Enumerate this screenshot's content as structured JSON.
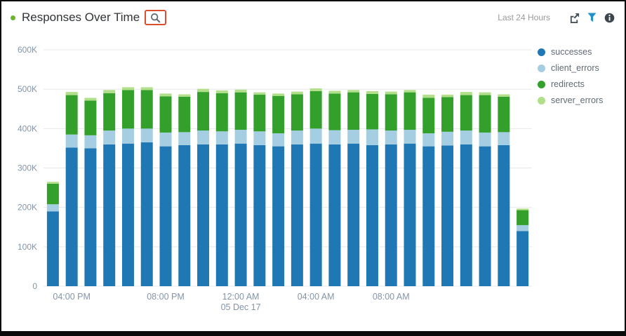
{
  "header": {
    "title": "Responses Over Time",
    "time_range": "Last 24 Hours",
    "status_dot_color": "#6ab42d",
    "annotation_color": "#d9512c"
  },
  "chart_data": {
    "type": "bar",
    "stacked": true,
    "title": "Responses Over Time",
    "grid": true,
    "legend_position": "right",
    "xlabel": "",
    "ylabel": "",
    "ylim": [
      0,
      600000
    ],
    "y_ticks": [
      {
        "value": 0,
        "label": "0"
      },
      {
        "value": 100000,
        "label": "100K"
      },
      {
        "value": 200000,
        "label": "200K"
      },
      {
        "value": 300000,
        "label": "300K"
      },
      {
        "value": 400000,
        "label": "400K"
      },
      {
        "value": 500000,
        "label": "500K"
      },
      {
        "value": 600000,
        "label": "600K"
      }
    ],
    "x_ticks": [
      {
        "index": 1,
        "label": "04:00 PM"
      },
      {
        "index": 6,
        "label": "08:00 PM"
      },
      {
        "index": 10,
        "label": "12:00 AM",
        "sublabel": "05 Dec 17"
      },
      {
        "index": 14,
        "label": "04:00 AM"
      },
      {
        "index": 18,
        "label": "08:00 AM"
      }
    ],
    "series": [
      {
        "name": "successes",
        "color": "#1f78b4",
        "values": [
          190000,
          352000,
          350000,
          360000,
          362000,
          365000,
          355000,
          358000,
          360000,
          360000,
          362000,
          358000,
          355000,
          360000,
          362000,
          360000,
          362000,
          358000,
          360000,
          362000,
          355000,
          357000,
          360000,
          355000,
          358000,
          140000
        ]
      },
      {
        "name": "client_errors",
        "color": "#a6cee3",
        "values": [
          18000,
          33000,
          33000,
          35000,
          38000,
          35000,
          35000,
          33000,
          35000,
          33000,
          35000,
          35000,
          33000,
          35000,
          38000,
          36000,
          35000,
          40000,
          35000,
          35000,
          33000,
          35000,
          35000,
          35000,
          33000,
          15000
        ]
      },
      {
        "name": "redirects",
        "color": "#33a02c",
        "values": [
          52000,
          100000,
          88000,
          95000,
          98000,
          98000,
          92000,
          90000,
          98000,
          97000,
          95000,
          93000,
          95000,
          92000,
          95000,
          93000,
          95000,
          90000,
          92000,
          95000,
          90000,
          88000,
          90000,
          95000,
          90000,
          38000
        ]
      },
      {
        "name": "server_errors",
        "color": "#b2df8a",
        "values": [
          5000,
          8000,
          7000,
          8000,
          7000,
          7000,
          7000,
          6000,
          8000,
          7000,
          7000,
          6000,
          6000,
          7000,
          7000,
          7000,
          6000,
          7000,
          7000,
          6000,
          8000,
          6000,
          8000,
          7000,
          6000,
          4000
        ]
      }
    ]
  }
}
